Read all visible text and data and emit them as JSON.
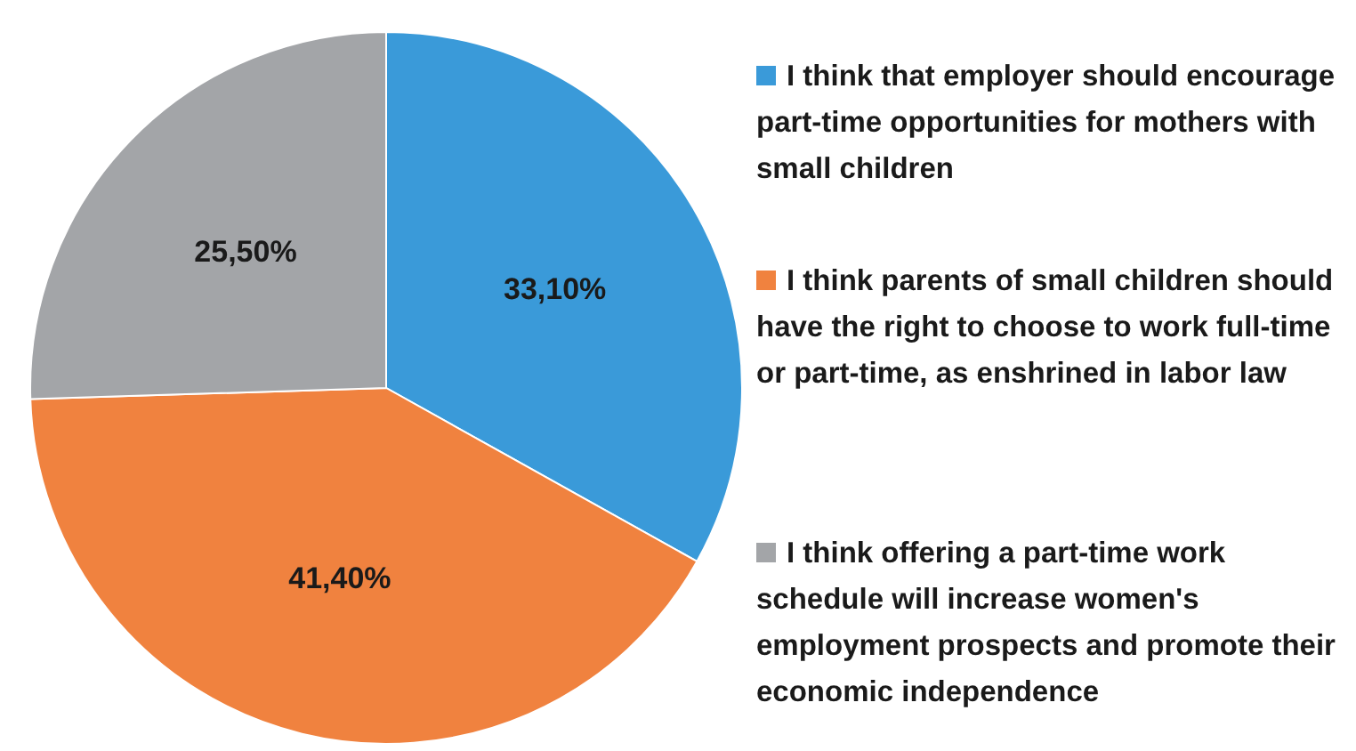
{
  "chart_data": {
    "type": "pie",
    "categories": [
      "I think that employer should encourage part-time opportunities for mothers with small children",
      "I think parents of small children should have the right to choose to work full-time or part-time, as enshrined in labor law",
      "I think offering a part-time work schedule will increase women's employment prospects and promote their economic independence"
    ],
    "values": [
      33.1,
      41.4,
      25.5
    ],
    "value_labels": [
      "33,10%",
      "41,40%",
      "25,50%"
    ],
    "colors": [
      "#3a9ad9",
      "#f0823f",
      "#a3a5a8"
    ],
    "legend": "right"
  }
}
